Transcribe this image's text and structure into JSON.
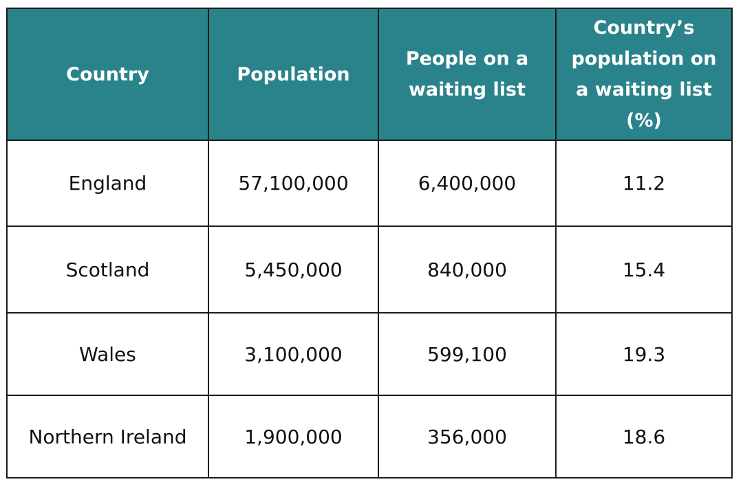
{
  "colors": {
    "header_background": "#2a838a",
    "header_text": "#ffffff",
    "border": "#1a1a1a",
    "cell_text": "#111111"
  },
  "table": {
    "headers": [
      "Country",
      "Population",
      "People on a waiting list",
      "Country’s population on a waiting list (%)"
    ],
    "rows": [
      [
        "England",
        "57,100,000",
        "6,400,000",
        "11.2"
      ],
      [
        "Scotland",
        "5,450,000",
        "840,000",
        "15.4"
      ],
      [
        "Wales",
        "3,100,000",
        "599,100",
        "19.3"
      ],
      [
        "Northern Ireland",
        "1,900,000",
        "356,000",
        "18.6"
      ]
    ]
  }
}
